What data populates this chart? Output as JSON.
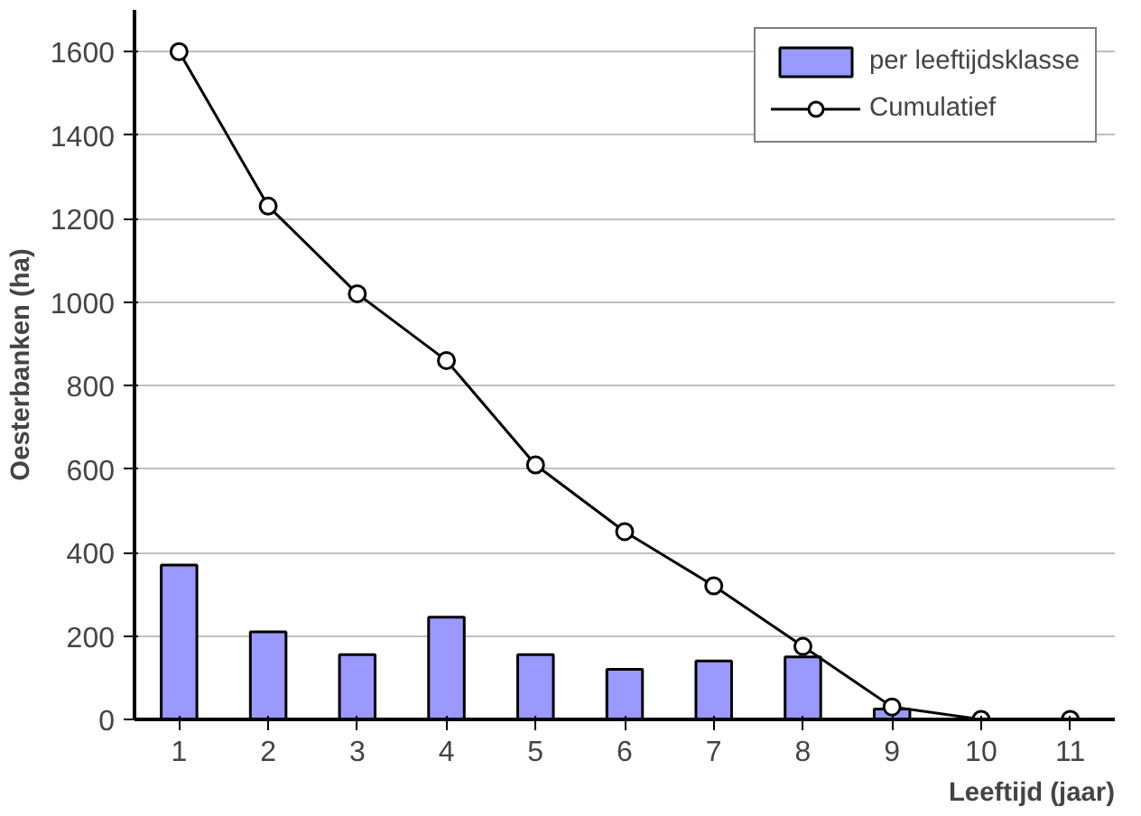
{
  "chart_data": {
    "type": "bar",
    "xlabel": "Leeftijd (jaar)",
    "ylabel": "Oesterbanken (ha)",
    "categories": [
      "1",
      "2",
      "3",
      "4",
      "5",
      "6",
      "7",
      "8",
      "9",
      "10",
      "11"
    ],
    "series": [
      {
        "name": "per leeftijdsklasse",
        "color": "#9999ff",
        "values": [
          370,
          210,
          155,
          245,
          155,
          120,
          140,
          150,
          25,
          0,
          0
        ]
      },
      {
        "name": "Cumulatief",
        "type": "line",
        "color": "#000000",
        "marker": "circle",
        "values": [
          1600,
          1230,
          1020,
          860,
          610,
          450,
          320,
          175,
          30,
          0,
          0
        ]
      }
    ],
    "ylim": [
      0,
      1700
    ],
    "yticks": [
      0,
      200,
      400,
      600,
      800,
      1000,
      1200,
      1400,
      1600
    ],
    "grid": "y",
    "legend": "top right"
  }
}
